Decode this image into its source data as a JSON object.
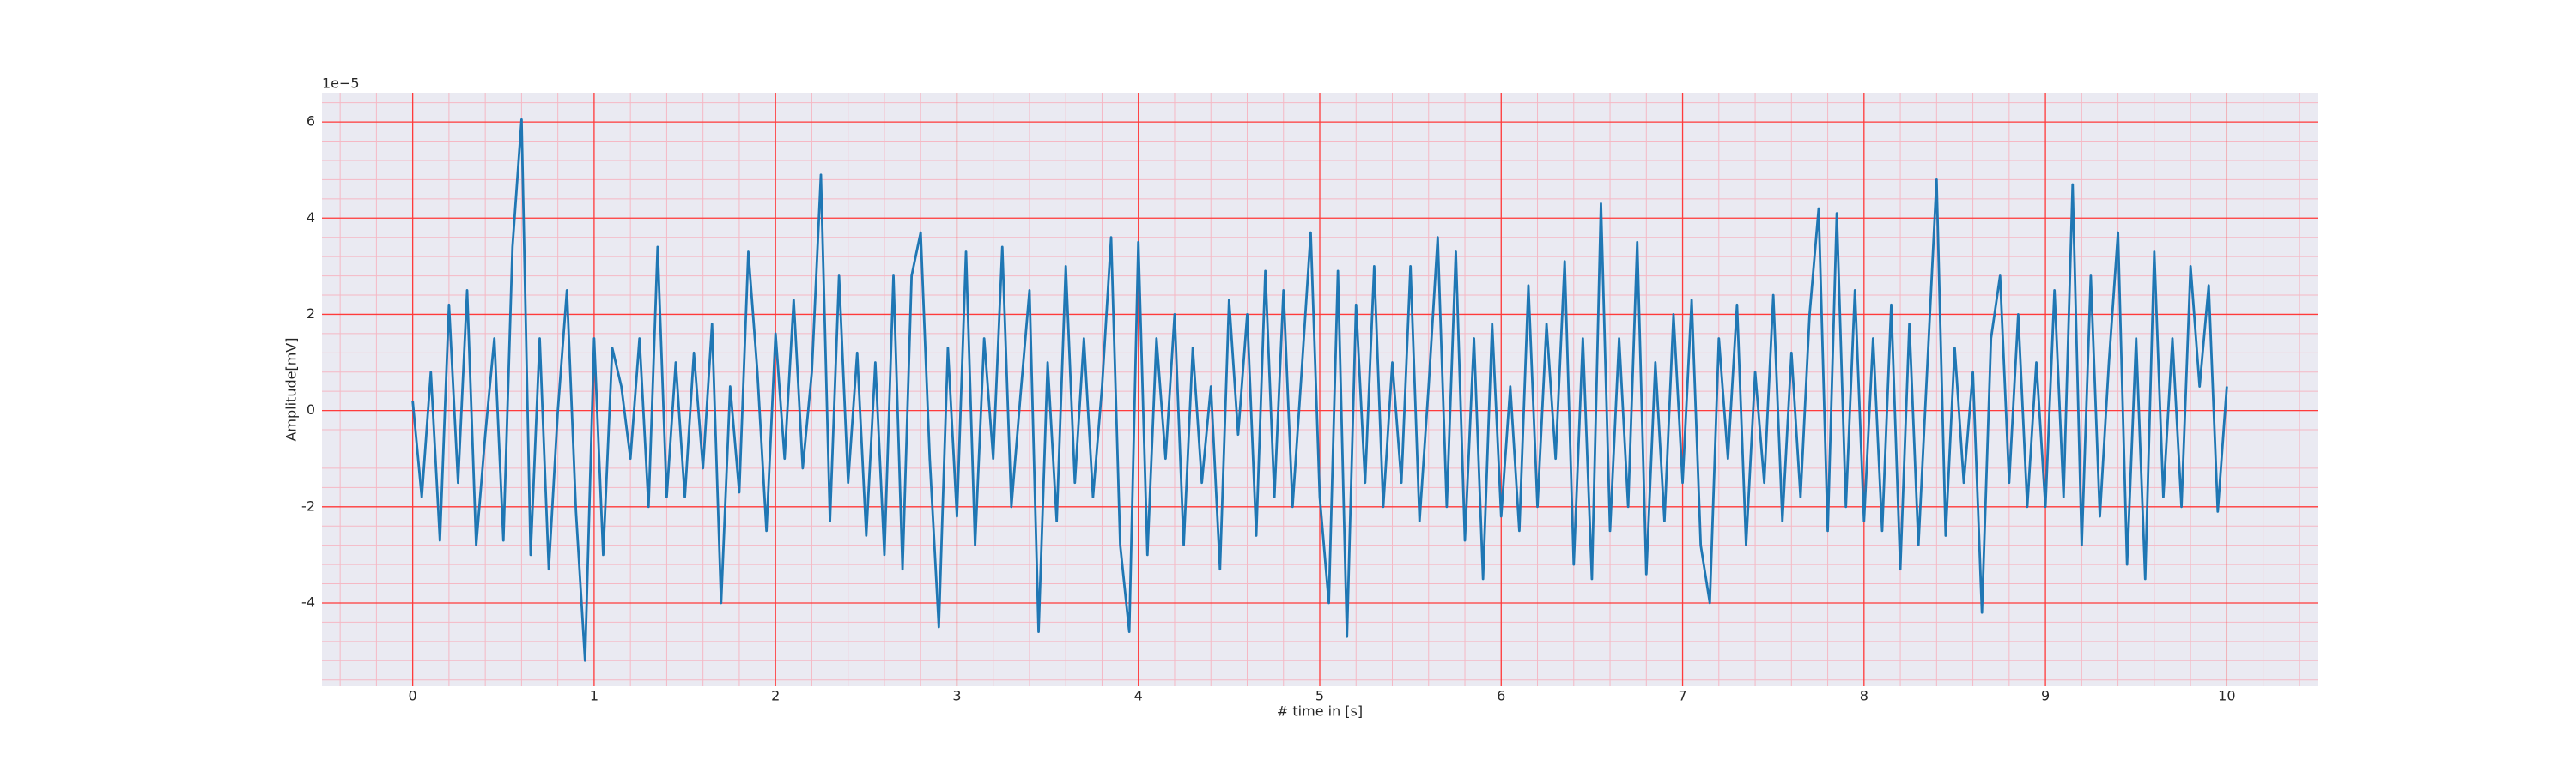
{
  "chart_data": {
    "type": "line",
    "xlabel": "# time in [s]",
    "ylabel": "Amplitude[mV]",
    "offset_label": "1e−5",
    "x": [
      0,
      0.05,
      0.1,
      0.15,
      0.2,
      0.25,
      0.3,
      0.35,
      0.4,
      0.45,
      0.5,
      0.55,
      0.6,
      0.65,
      0.7,
      0.75,
      0.8,
      0.85,
      0.9,
      0.95,
      1,
      1.05,
      1.1,
      1.15,
      1.2,
      1.25,
      1.3,
      1.35,
      1.4,
      1.45,
      1.5,
      1.55,
      1.6,
      1.65,
      1.7,
      1.75,
      1.8,
      1.85,
      1.9,
      1.95,
      2,
      2.05,
      2.1,
      2.15,
      2.2,
      2.25,
      2.3,
      2.35,
      2.4,
      2.45,
      2.5,
      2.55,
      2.6,
      2.65,
      2.7,
      2.75,
      2.8,
      2.85,
      2.9,
      2.95,
      3,
      3.05,
      3.1,
      3.15,
      3.2,
      3.25,
      3.3,
      3.35,
      3.4,
      3.45,
      3.5,
      3.55,
      3.6,
      3.65,
      3.7,
      3.75,
      3.8,
      3.85,
      3.9,
      3.95,
      4,
      4.05,
      4.1,
      4.15,
      4.2,
      4.25,
      4.3,
      4.35,
      4.4,
      4.45,
      4.5,
      4.55,
      4.6,
      4.65,
      4.7,
      4.75,
      4.8,
      4.85,
      4.9,
      4.95,
      5,
      5.05,
      5.1,
      5.15,
      5.2,
      5.25,
      5.3,
      5.35,
      5.4,
      5.45,
      5.5,
      5.55,
      5.6,
      5.65,
      5.7,
      5.75,
      5.8,
      5.85,
      5.9,
      5.95,
      6,
      6.05,
      6.1,
      6.15,
      6.2,
      6.25,
      6.3,
      6.35,
      6.4,
      6.45,
      6.5,
      6.55,
      6.6,
      6.65,
      6.7,
      6.75,
      6.8,
      6.85,
      6.9,
      6.95,
      7,
      7.05,
      7.1,
      7.15,
      7.2,
      7.25,
      7.3,
      7.35,
      7.4,
      7.45,
      7.5,
      7.55,
      7.6,
      7.65,
      7.7,
      7.75,
      7.8,
      7.85,
      7.9,
      7.95,
      8,
      8.05,
      8.1,
      8.15,
      8.2,
      8.25,
      8.3,
      8.35,
      8.4,
      8.45,
      8.5,
      8.55,
      8.6,
      8.65,
      8.7,
      8.75,
      8.8,
      8.85,
      8.9,
      8.95,
      9,
      9.05,
      9.1,
      9.15,
      9.2,
      9.25,
      9.3,
      9.35,
      9.4,
      9.45,
      9.5,
      9.55,
      9.6,
      9.65,
      9.7,
      9.75,
      9.8,
      9.85,
      9.9,
      9.95,
      10
    ],
    "series": [
      {
        "color": "#1f77b4",
        "values": [
          0.2,
          -1.8,
          0.8,
          -2.7,
          2.2,
          -1.5,
          2.5,
          -2.8,
          -0.5,
          1.5,
          -2.7,
          3.4,
          6.05,
          -3.0,
          1.5,
          -3.3,
          0.0,
          2.5,
          -2.1,
          -5.2,
          1.5,
          -3.0,
          1.3,
          0.5,
          -1.0,
          1.5,
          -2.0,
          3.4,
          -1.8,
          1.0,
          -1.8,
          1.2,
          -1.2,
          1.8,
          -4.0,
          0.5,
          -1.7,
          3.3,
          0.8,
          -2.5,
          1.6,
          -1.0,
          2.3,
          -1.2,
          0.8,
          4.9,
          -2.3,
          2.8,
          -1.5,
          1.2,
          -2.6,
          1.0,
          -3.0,
          2.8,
          -3.3,
          2.8,
          3.7,
          -1.0,
          -4.5,
          1.3,
          -2.2,
          3.3,
          -2.8,
          1.5,
          -1.0,
          3.4,
          -2.0,
          0.3,
          2.5,
          -4.6,
          1.0,
          -2.3,
          3.0,
          -1.5,
          1.5,
          -1.8,
          0.5,
          3.6,
          -2.8,
          -4.6,
          3.5,
          -3.0,
          1.5,
          -1.0,
          2.0,
          -2.8,
          1.3,
          -1.5,
          0.5,
          -3.3,
          2.3,
          -0.5,
          2.0,
          -2.6,
          2.9,
          -1.8,
          2.5,
          -2.0,
          0.8,
          3.7,
          -1.8,
          -4.0,
          2.9,
          -4.7,
          2.2,
          -1.5,
          3.0,
          -2.0,
          1.0,
          -1.5,
          3.0,
          -2.3,
          0.5,
          3.6,
          -2.0,
          3.3,
          -2.7,
          1.5,
          -3.5,
          1.8,
          -2.2,
          0.5,
          -2.5,
          2.6,
          -2.0,
          1.8,
          -1.0,
          3.1,
          -3.2,
          1.5,
          -3.5,
          4.3,
          -2.5,
          1.5,
          -2.0,
          3.5,
          -3.4,
          1.0,
          -2.3,
          2.0,
          -1.5,
          2.3,
          -2.8,
          -4.0,
          1.5,
          -1.0,
          2.2,
          -2.8,
          0.8,
          -1.5,
          2.4,
          -2.3,
          1.2,
          -1.8,
          2.0,
          4.2,
          -2.5,
          4.1,
          -2.0,
          2.5,
          -2.3,
          1.5,
          -2.5,
          2.2,
          -3.3,
          1.8,
          -2.8,
          1.0,
          4.8,
          -2.6,
          1.3,
          -1.5,
          0.8,
          -4.2,
          1.5,
          2.8,
          -1.5,
          2.0,
          -2.0,
          1.0,
          -2.0,
          2.5,
          -1.8,
          4.7,
          -2.8,
          2.8,
          -2.2,
          1.0,
          3.7,
          -3.2,
          1.5,
          -3.5,
          3.3,
          -1.8,
          1.5,
          -2.0,
          3.0,
          0.5,
          2.6,
          -2.1,
          0.5
        ]
      }
    ],
    "xlim": [
      -0.5,
      10.5
    ],
    "xticks": [
      0,
      1,
      2,
      3,
      4,
      5,
      6,
      7,
      8,
      9,
      10
    ],
    "ylim": [
      -5.73,
      6.59
    ],
    "yticks": [
      -4,
      -2,
      0,
      2,
      4,
      6
    ],
    "grid": true,
    "grid_color": "#ff3b3b",
    "minor_grid": true,
    "minor_grid_color": "#f5b8c4",
    "minor_divisions": 5,
    "background": "#eaeaf2"
  }
}
